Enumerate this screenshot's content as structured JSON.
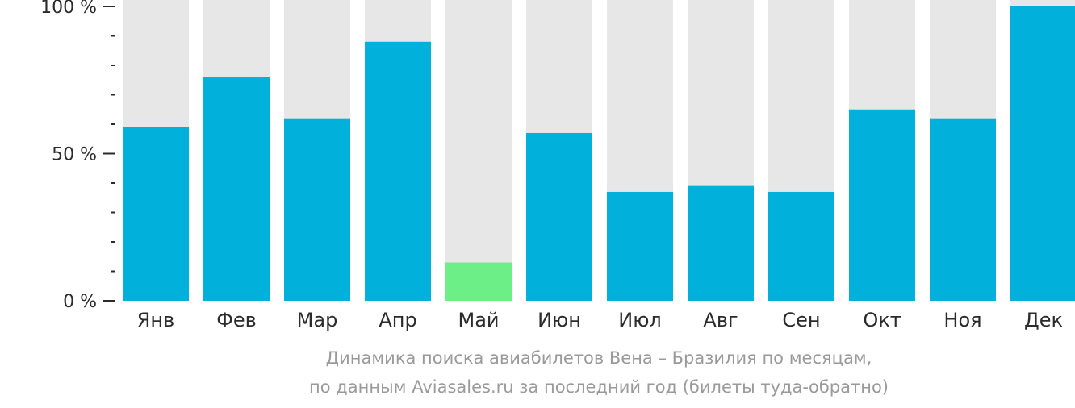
{
  "chart_data": {
    "type": "bar",
    "categories": [
      "Янв",
      "Фев",
      "Мар",
      "Апр",
      "Май",
      "Июн",
      "Июл",
      "Авг",
      "Сен",
      "Окт",
      "Ноя",
      "Дек"
    ],
    "values": [
      59,
      76,
      62,
      88,
      13,
      57,
      37,
      39,
      37,
      65,
      62,
      100
    ],
    "ylim": [
      0,
      100
    ],
    "yticks": [
      {
        "value": 0,
        "label": "0 %"
      },
      {
        "value": 50,
        "label": "50 %"
      },
      {
        "value": 100,
        "label": "100 %"
      }
    ],
    "minor_tick_step": 10,
    "highlight_index": 4,
    "legend": "none",
    "grid": false,
    "caption_lines": [
      "Динамика поиска авиабилетов Вена – Бразилия по месяцам,",
      "по данным Aviasales.ru за последний год (билеты туда-обратно)"
    ]
  },
  "colors": {
    "bar": "#02b0dc",
    "bar_highlight": "#6cef86",
    "bar_background": "#e7e7e7",
    "axis": "#2b2b2b",
    "caption": "#9a9a9a"
  }
}
